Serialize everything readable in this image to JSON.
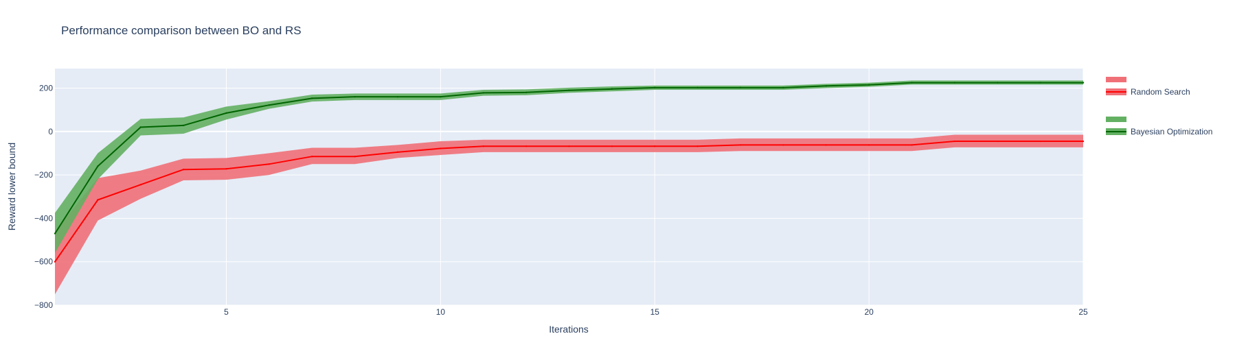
{
  "chart_data": {
    "type": "line",
    "title": "Performance comparison between BO and RS",
    "xlabel": "Iterations",
    "ylabel": "Reward lower bound",
    "xlim": [
      1,
      25
    ],
    "ylim": [
      -800,
      290
    ],
    "xticks": [
      5,
      10,
      15,
      20,
      25
    ],
    "yticks": [
      200,
      0,
      -200,
      -400,
      -600,
      -800
    ],
    "grid": true,
    "legend_position": "right",
    "x": [
      1,
      2,
      3,
      4,
      5,
      6,
      7,
      8,
      9,
      10,
      11,
      12,
      13,
      14,
      15,
      16,
      17,
      18,
      19,
      20,
      21,
      22,
      23,
      24,
      25
    ],
    "series": [
      {
        "name": "Random Search",
        "line_color": "#ff0000",
        "band_color": "#f07078",
        "mean": [
          -600,
          -315,
          -245,
          -175,
          -172,
          -150,
          -115,
          -115,
          -95,
          -78,
          -68,
          -68,
          -68,
          -68,
          -68,
          -68,
          -62,
          -62,
          -62,
          -62,
          -62,
          -45,
          -45,
          -45,
          -45
        ],
        "upper": [
          -460,
          -215,
          -180,
          -125,
          -122,
          -100,
          -75,
          -75,
          -62,
          -45,
          -38,
          -38,
          -38,
          -38,
          -38,
          -38,
          -32,
          -32,
          -32,
          -32,
          -32,
          -15,
          -15,
          -15,
          -15
        ],
        "lower": [
          -750,
          -410,
          -310,
          -225,
          -222,
          -200,
          -150,
          -150,
          -122,
          -108,
          -95,
          -95,
          -95,
          -95,
          -95,
          -95,
          -90,
          -90,
          -90,
          -90,
          -90,
          -73,
          -73,
          -73,
          -73
        ]
      },
      {
        "name": "Bayesian Optimization",
        "line_color": "#006400",
        "band_color": "#63b063",
        "mean": [
          -470,
          -160,
          20,
          28,
          85,
          122,
          153,
          160,
          160,
          160,
          178,
          180,
          190,
          196,
          202,
          202,
          202,
          202,
          210,
          215,
          225,
          225,
          225,
          225,
          225
        ],
        "upper": [
          -375,
          -100,
          58,
          65,
          115,
          140,
          170,
          175,
          175,
          175,
          192,
          194,
          202,
          208,
          212,
          212,
          212,
          212,
          220,
          225,
          235,
          235,
          235,
          235,
          235
        ],
        "lower": [
          -560,
          -220,
          -18,
          -10,
          55,
          105,
          138,
          145,
          145,
          145,
          165,
          167,
          178,
          185,
          192,
          192,
          192,
          192,
          200,
          206,
          216,
          216,
          216,
          216,
          216
        ]
      }
    ]
  }
}
